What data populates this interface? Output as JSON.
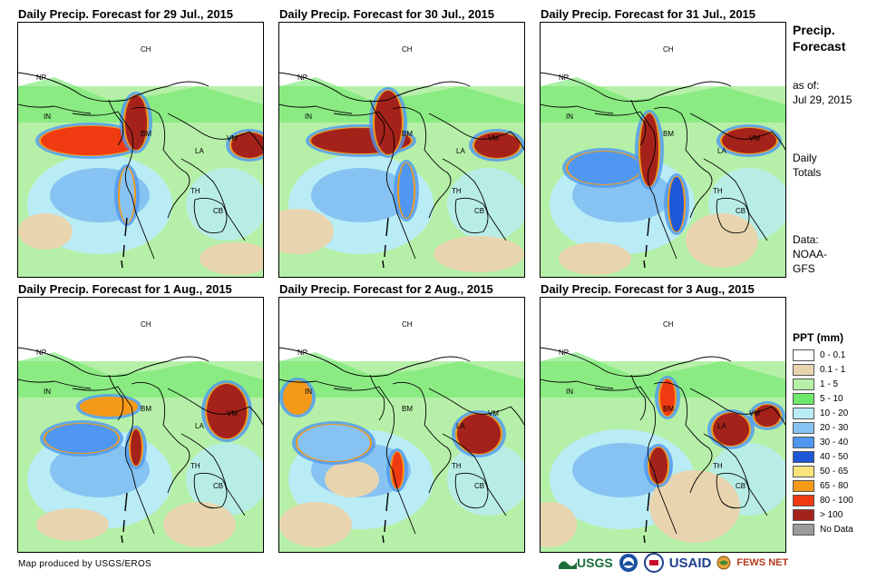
{
  "panels": [
    {
      "title": "Daily Precip. Forecast for 29 Jul., 2015"
    },
    {
      "title": "Daily Precip. Forecast for 30 Jul., 2015"
    },
    {
      "title": "Daily Precip. Forecast for 31 Jul., 2015"
    },
    {
      "title": "Daily Precip. Forecast for 1 Aug., 2015"
    },
    {
      "title": "Daily Precip. Forecast for 2 Aug., 2015"
    },
    {
      "title": "Daily Precip. Forecast for 3 Aug., 2015"
    }
  ],
  "map_labels": {
    "ch": "CH",
    "np": "NP",
    "in": "IN",
    "bm": "BM",
    "la": "LA",
    "vm": "VM",
    "th": "TH",
    "cb": "CB"
  },
  "sidebar": {
    "title_line1": "Precip.",
    "title_line2": "Forecast",
    "asof_line1": "as of:",
    "asof_line2": "Jul 29, 2015",
    "daily_line1": "Daily",
    "daily_line2": "Totals",
    "data_line1": "Data:",
    "data_line2": "NOAA-",
    "data_line3": "GFS"
  },
  "legend": {
    "title": "PPT (mm)",
    "items": [
      {
        "label": "0 - 0.1",
        "color": "#ffffff"
      },
      {
        "label": "0.1 - 1",
        "color": "#e8d5b0"
      },
      {
        "label": "1 - 5",
        "color": "#b6f0a8"
      },
      {
        "label": "5 - 10",
        "color": "#6ee86a"
      },
      {
        "label": "10 - 20",
        "color": "#b9ecf5"
      },
      {
        "label": "20 - 30",
        "color": "#86c3f2"
      },
      {
        "label": "30 - 40",
        "color": "#4f97f0"
      },
      {
        "label": "40 - 50",
        "color": "#1e57d8"
      },
      {
        "label": "50 - 65",
        "color": "#fbe47c"
      },
      {
        "label": "65 - 80",
        "color": "#f59a18"
      },
      {
        "label": "80 - 100",
        "color": "#ef3a12"
      },
      {
        "label": "> 100",
        "color": "#a5221b"
      },
      {
        "label": "No Data",
        "color": "#9b9b9b"
      }
    ]
  },
  "credit": "Map produced by USGS/EROS",
  "logos": {
    "usgs": "USGS",
    "usaid": "USAID",
    "fewsnet": "FEWS NET"
  }
}
